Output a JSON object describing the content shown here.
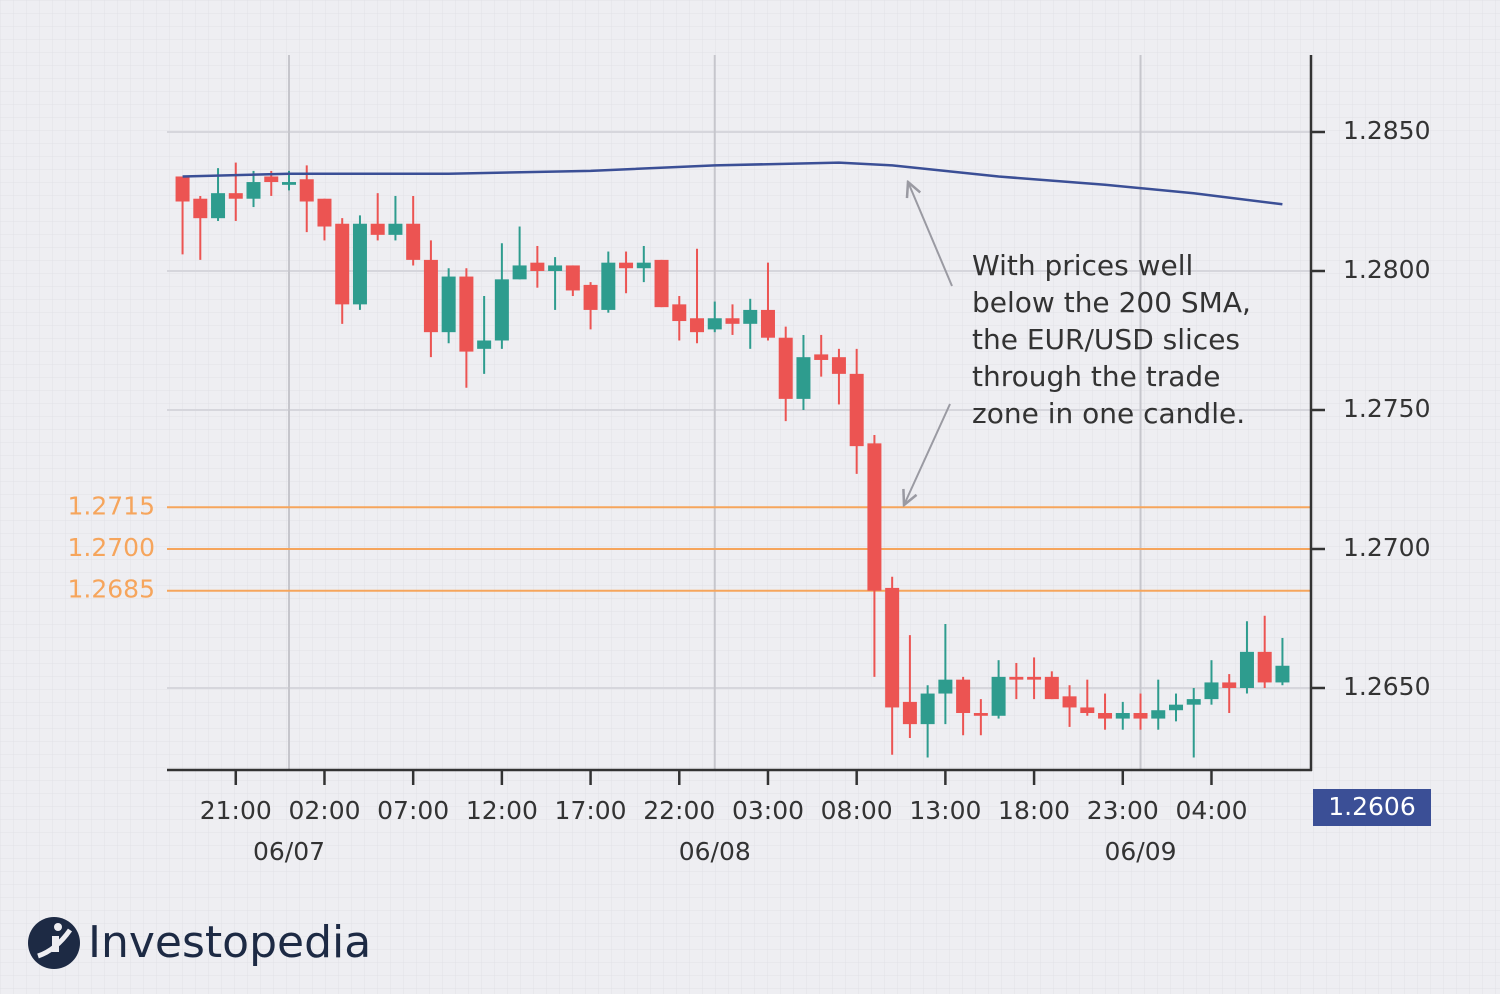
{
  "chart_data": {
    "type": "candlestick",
    "x": [
      -6,
      -5,
      -4,
      -3,
      -2,
      -1,
      0,
      1,
      2,
      3,
      4,
      5,
      6,
      7,
      8,
      9,
      10,
      11,
      12,
      13,
      14,
      15,
      16,
      17,
      18,
      19,
      20,
      21,
      22,
      23,
      24,
      25,
      26,
      27,
      28,
      29,
      30,
      31,
      32,
      33,
      34,
      35,
      36,
      37,
      38,
      39,
      40,
      41,
      42,
      43,
      44,
      45,
      46,
      47,
      48,
      49,
      50,
      51,
      52,
      53,
      54,
      55,
      56
    ],
    "open": [
      1.2834,
      1.2826,
      1.2819,
      1.2828,
      1.2826,
      1.2834,
      1.2831,
      1.2833,
      1.2826,
      1.2817,
      1.2788,
      1.2817,
      1.2813,
      1.2817,
      1.2804,
      1.2778,
      1.2798,
      1.2772,
      1.2775,
      1.2797,
      1.2803,
      1.28,
      1.2802,
      1.2795,
      1.2786,
      1.2803,
      1.2801,
      1.2804,
      1.2788,
      1.2783,
      1.2779,
      1.2783,
      1.2781,
      1.2786,
      1.2776,
      1.2754,
      1.277,
      1.2769,
      1.2763,
      1.2738,
      1.2686,
      1.2645,
      1.2637,
      1.2648,
      1.2653,
      1.2641,
      1.264,
      1.2654,
      1.2654,
      1.2654,
      1.2647,
      1.2643,
      1.2641,
      1.2639,
      1.2641,
      1.2639,
      1.2642,
      1.2644,
      1.2646,
      1.2652,
      1.265,
      1.2663,
      1.2652
    ],
    "high": [
      1.2834,
      1.2827,
      1.2837,
      1.2839,
      1.2836,
      1.2836,
      1.2836,
      1.2838,
      1.2826,
      1.2819,
      1.282,
      1.2828,
      1.2827,
      1.2827,
      1.2811,
      1.2801,
      1.2801,
      1.2791,
      1.281,
      1.2816,
      1.2809,
      1.2805,
      1.2802,
      1.2796,
      1.2807,
      1.2807,
      1.2809,
      1.2804,
      1.2791,
      1.2808,
      1.2789,
      1.2788,
      1.279,
      1.2803,
      1.278,
      1.2777,
      1.2777,
      1.2772,
      1.2772,
      1.2741,
      1.269,
      1.2669,
      1.2651,
      1.2673,
      1.2654,
      1.2646,
      1.266,
      1.2659,
      1.2661,
      1.2656,
      1.2651,
      1.2653,
      1.2648,
      1.2645,
      1.2648,
      1.2653,
      1.2648,
      1.265,
      1.266,
      1.2655,
      1.2674,
      1.2676,
      1.2668
    ],
    "low": [
      1.2806,
      1.2804,
      1.2818,
      1.2818,
      1.2823,
      1.2827,
      1.2829,
      1.2814,
      1.2811,
      1.2781,
      1.2786,
      1.2811,
      1.2811,
      1.2802,
      1.2769,
      1.2774,
      1.2758,
      1.2763,
      1.2772,
      1.2797,
      1.2794,
      1.2786,
      1.2791,
      1.2779,
      1.2785,
      1.2792,
      1.2796,
      1.2787,
      1.2775,
      1.2774,
      1.2778,
      1.2777,
      1.2772,
      1.2775,
      1.2746,
      1.275,
      1.2762,
      1.2752,
      1.2727,
      1.2654,
      1.2626,
      1.2632,
      1.2625,
      1.2637,
      1.2633,
      1.2633,
      1.2639,
      1.2646,
      1.2646,
      1.2646,
      1.2636,
      1.264,
      1.2635,
      1.2635,
      1.2635,
      1.2635,
      1.2638,
      1.2625,
      1.2644,
      1.2641,
      1.2648,
      1.265,
      1.2651
    ],
    "close": [
      1.2825,
      1.2819,
      1.2828,
      1.2826,
      1.2832,
      1.2832,
      1.2832,
      1.2825,
      1.2816,
      1.2788,
      1.2817,
      1.2813,
      1.2817,
      1.2804,
      1.2778,
      1.2798,
      1.2771,
      1.2775,
      1.2797,
      1.2802,
      1.28,
      1.2802,
      1.2793,
      1.2786,
      1.2803,
      1.2801,
      1.2803,
      1.2787,
      1.2782,
      1.2778,
      1.2783,
      1.2781,
      1.2786,
      1.2776,
      1.2754,
      1.2769,
      1.2768,
      1.2763,
      1.2737,
      1.2685,
      1.2643,
      1.2637,
      1.2648,
      1.2653,
      1.2641,
      1.264,
      1.2654,
      1.2653,
      1.2653,
      1.2646,
      1.2643,
      1.2641,
      1.2639,
      1.2641,
      1.2639,
      1.2642,
      1.2644,
      1.2646,
      1.2652,
      1.265,
      1.2663,
      1.2652,
      1.2658
    ],
    "up_color": "#2e9c8e",
    "down_color": "#ec5452",
    "sma": {
      "color": "#3b4f96",
      "x": [
        -6,
        0,
        9,
        17,
        24,
        31,
        34,
        40,
        46,
        51,
        56
      ],
      "values": [
        1.2834,
        1.2835,
        1.2835,
        1.2836,
        1.2838,
        1.2839,
        1.2838,
        1.2834,
        1.2831,
        1.2828,
        1.2824
      ]
    },
    "levels": {
      "color": "#f6a55c",
      "values": [
        1.2715,
        {
          "value": 1.27,
          "label": "1.2700"
        },
        1.2685
      ]
    },
    "xlim": [
      -6.877,
      57.61
    ],
    "ylim": [
      1.26205,
      1.28777
    ],
    "yticks": [
      {
        "value": 1.285,
        "label": "1.2850"
      },
      {
        "value": 1.28,
        "label": "1.2800"
      },
      {
        "value": 1.275,
        "label": "1.2750"
      },
      {
        "value": 1.27,
        "label": "1.2700"
      },
      {
        "value": 1.265,
        "label": "1.2650"
      }
    ],
    "xticks": [
      {
        "value": -3,
        "label": "21:00"
      },
      {
        "value": 2,
        "label": "02:00"
      },
      {
        "value": 7,
        "label": "07:00"
      },
      {
        "value": 12,
        "label": "12:00"
      },
      {
        "value": 17,
        "label": "17:00"
      },
      {
        "value": 22,
        "label": "22:00"
      },
      {
        "value": 27,
        "label": "03:00"
      },
      {
        "value": 32,
        "label": "08:00"
      },
      {
        "value": 37,
        "label": "13:00"
      },
      {
        "value": 42,
        "label": "18:00"
      },
      {
        "value": 47,
        "label": "23:00"
      },
      {
        "value": 52,
        "label": "04:00"
      }
    ],
    "date_ticks": [
      {
        "value": 0,
        "label": "06/07"
      },
      {
        "value": 24,
        "label": "06/08"
      },
      {
        "value": 48,
        "label": "06/09"
      }
    ],
    "grid": true,
    "price_tag": 1.2606,
    "annotation": [
      "With prices well",
      "below the 200 SMA,",
      "the EUR/USD slices",
      "through the trade",
      "zone in one candle."
    ]
  },
  "logo": "Investopedia"
}
